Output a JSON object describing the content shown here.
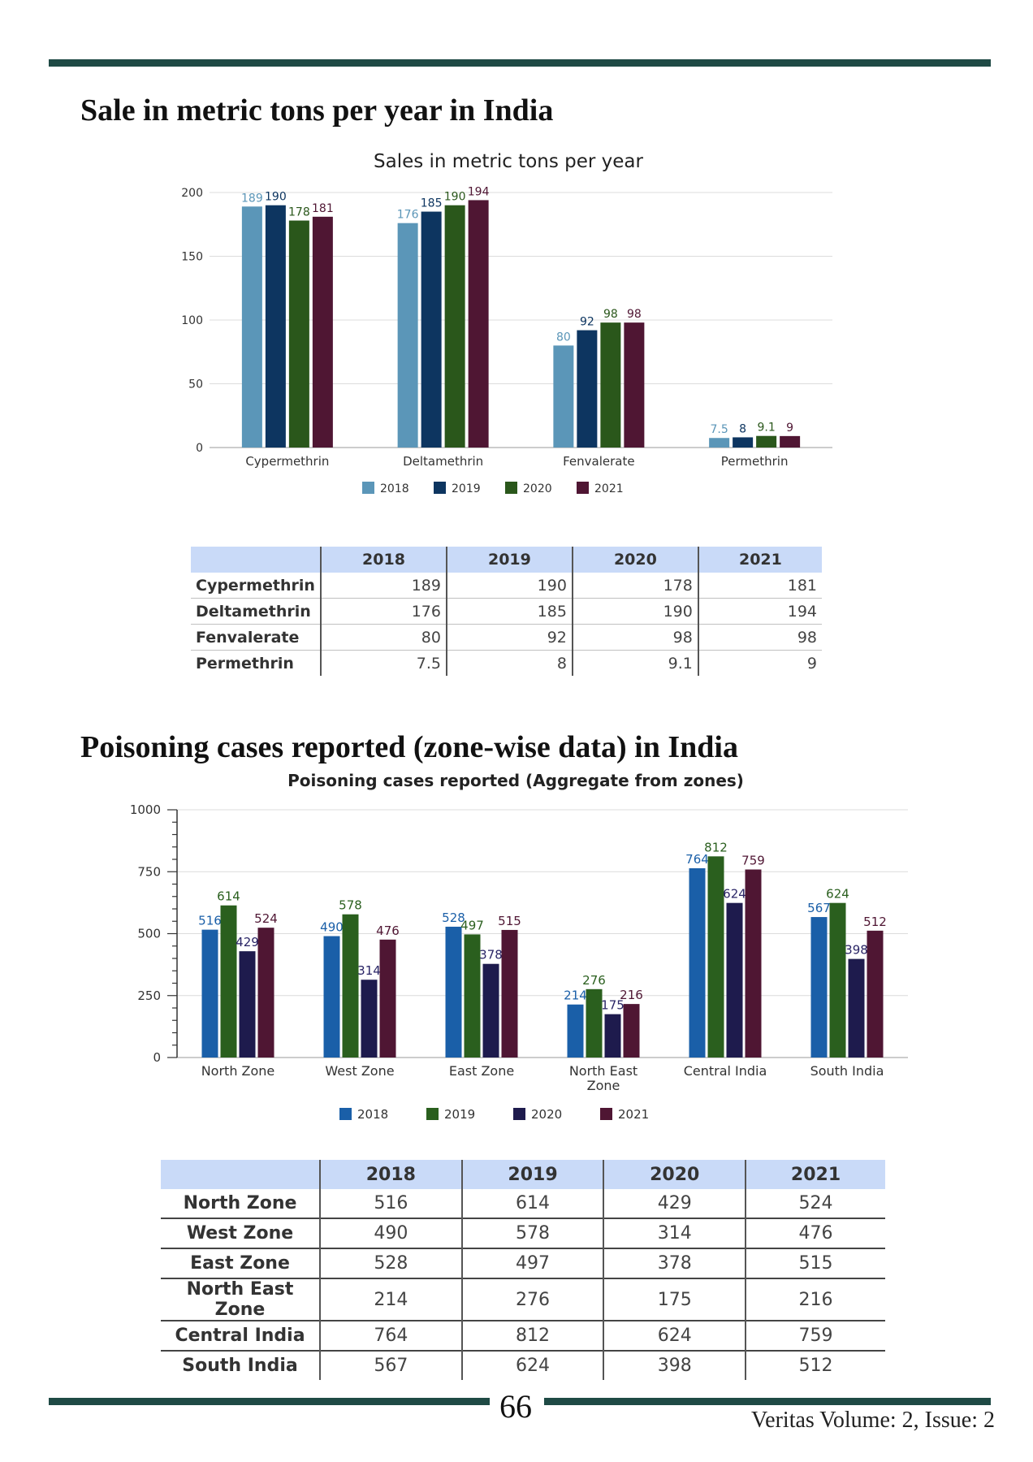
{
  "page": {
    "section1_heading": "Sale in metric tons per year in India",
    "section2_heading": "Poisoning cases reported (zone-wise data) in India",
    "page_number": "66",
    "journal": "Veritas Volume: 2, Issue: 2"
  },
  "colors": {
    "accent_rule": "#1f4a45",
    "series_chart1": [
      "#5b96b8",
      "#0d3560",
      "#2a571b",
      "#4f1633"
    ],
    "series_chart2": [
      "#1a5fa8",
      "#2a5f1e",
      "#1e1b4d",
      "#4f1633"
    ],
    "table_header": "#c9daf8"
  },
  "chart_data": [
    {
      "type": "bar",
      "title": "Sales in metric tons per year",
      "categories": [
        "Cypermethrin",
        "Deltamethrin",
        "Fenvalerate",
        "Permethrin"
      ],
      "series": [
        {
          "name": "2018",
          "values": [
            189,
            176,
            80,
            7.5
          ]
        },
        {
          "name": "2019",
          "values": [
            190,
            185,
            92,
            8
          ]
        },
        {
          "name": "2020",
          "values": [
            178,
            190,
            98,
            9.1
          ]
        },
        {
          "name": "2021",
          "values": [
            181,
            194,
            98,
            9
          ]
        }
      ],
      "ylim": [
        0,
        200
      ],
      "yticks": [
        0,
        50,
        100,
        150,
        200
      ],
      "grid": true,
      "legend": "bottom",
      "data_labels": true
    },
    {
      "type": "bar",
      "title": "Poisoning cases reported (Aggregate from zones)",
      "categories": [
        "North Zone",
        "West Zone",
        "East Zone",
        "North East Zone",
        "Central India",
        "South India"
      ],
      "series": [
        {
          "name": "2018",
          "values": [
            516,
            490,
            528,
            214,
            764,
            567
          ]
        },
        {
          "name": "2019",
          "values": [
            614,
            578,
            497,
            276,
            812,
            624
          ]
        },
        {
          "name": "2020",
          "values": [
            429,
            314,
            378,
            175,
            624,
            398
          ]
        },
        {
          "name": "2021",
          "values": [
            524,
            476,
            515,
            216,
            759,
            512
          ]
        }
      ],
      "ylim": [
        0,
        1000
      ],
      "yticks": [
        0,
        250,
        500,
        750,
        1000
      ],
      "grid": true,
      "legend": "bottom",
      "data_labels": true
    }
  ],
  "table1": {
    "headers": [
      "",
      "2018",
      "2019",
      "2020",
      "2021"
    ],
    "rows": [
      {
        "label": "Cypermethrin",
        "values": [
          "189",
          "190",
          "178",
          "181"
        ]
      },
      {
        "label": "Deltamethrin",
        "values": [
          "176",
          "185",
          "190",
          "194"
        ]
      },
      {
        "label": "Fenvalerate",
        "values": [
          "80",
          "92",
          "98",
          "98"
        ]
      },
      {
        "label": "Permethrin",
        "values": [
          "7.5",
          "8",
          "9.1",
          "9"
        ]
      }
    ]
  },
  "table2": {
    "headers": [
      "",
      "2018",
      "2019",
      "2020",
      "2021"
    ],
    "rows": [
      {
        "label": "North Zone",
        "values": [
          "516",
          "614",
          "429",
          "524"
        ]
      },
      {
        "label": "West Zone",
        "values": [
          "490",
          "578",
          "314",
          "476"
        ]
      },
      {
        "label": "East Zone",
        "values": [
          "528",
          "497",
          "378",
          "515"
        ]
      },
      {
        "label": "North East Zone",
        "values": [
          "214",
          "276",
          "175",
          "216"
        ]
      },
      {
        "label": "Central India",
        "values": [
          "764",
          "812",
          "624",
          "759"
        ]
      },
      {
        "label": "South India",
        "values": [
          "567",
          "624",
          "398",
          "512"
        ]
      }
    ]
  }
}
